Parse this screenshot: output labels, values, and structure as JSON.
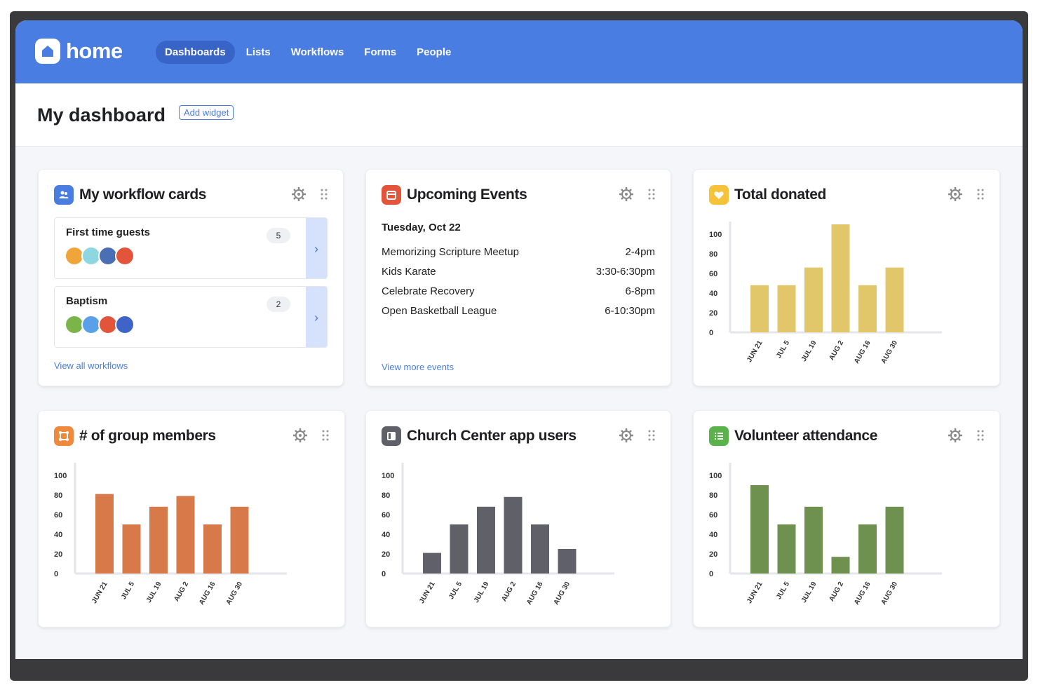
{
  "app": {
    "logo_text": "home",
    "nav": [
      "Dashboards",
      "Lists",
      "Workflows",
      "Forms",
      "People"
    ],
    "active_nav": "Dashboards"
  },
  "header": {
    "title": "My dashboard",
    "add_widget_label": "Add widget"
  },
  "colors": {
    "brand": "#4a7de2",
    "workflow_icon": "#4a7de2",
    "events_icon": "#e2553a",
    "donated_icon": "#f5c23a",
    "group_icon": "#ef8a3c",
    "app_users_icon": "#5f6068",
    "volunteer_icon": "#59b24a"
  },
  "workflow_widget": {
    "title": "My workflow cards",
    "items": [
      {
        "name": "First time guests",
        "count": "5"
      },
      {
        "name": "Baptism",
        "count": "2"
      }
    ],
    "link": "View all workflows"
  },
  "events_widget": {
    "title": "Upcoming Events",
    "date": "Tuesday, Oct 22",
    "events": [
      {
        "name": "Memorizing Scripture Meetup",
        "time": "2-4pm"
      },
      {
        "name": "Kids Karate",
        "time": "3:30-6:30pm"
      },
      {
        "name": "Celebrate Recovery",
        "time": "6-8pm"
      },
      {
        "name": "Open Basketball League",
        "time": "6-10:30pm"
      }
    ],
    "link": "View more events"
  },
  "chart_data": [
    {
      "type": "bar",
      "title": "Total donated",
      "categories": [
        "JUN 21",
        "JUL 5",
        "JUL 19",
        "AUG 2",
        "AUG 16",
        "AUG 30"
      ],
      "values": [
        48,
        48,
        66,
        110,
        48,
        66
      ],
      "ylim": [
        0,
        100
      ],
      "yticks": [
        0,
        20,
        40,
        60,
        80,
        100
      ],
      "color": "#e1c66a"
    },
    {
      "type": "bar",
      "title": "# of group members",
      "categories": [
        "JUN 21",
        "JUL 5",
        "JUL 19",
        "AUG 2",
        "AUG 16",
        "AUG 30"
      ],
      "values": [
        81,
        50,
        68,
        79,
        50,
        68
      ],
      "ylim": [
        0,
        100
      ],
      "yticks": [
        0,
        20,
        40,
        60,
        80,
        100
      ],
      "color": "#d8794a"
    },
    {
      "type": "bar",
      "title": "Church Center app users",
      "categories": [
        "JUN 21",
        "JUL 5",
        "JUL 19",
        "AUG 2",
        "AUG 16",
        "AUG 30"
      ],
      "values": [
        21,
        50,
        68,
        78,
        50,
        25
      ],
      "ylim": [
        0,
        100
      ],
      "yticks": [
        0,
        20,
        40,
        60,
        80,
        100
      ],
      "color": "#5f6068"
    },
    {
      "type": "bar",
      "title": "Volunteer attendance",
      "categories": [
        "JUN 21",
        "JUL 5",
        "JUL 19",
        "AUG 2",
        "AUG 16",
        "AUG 30"
      ],
      "values": [
        90,
        50,
        68,
        17,
        50,
        68
      ],
      "ylim": [
        0,
        100
      ],
      "yticks": [
        0,
        20,
        40,
        60,
        80,
        100
      ],
      "color": "#6f9150"
    }
  ]
}
